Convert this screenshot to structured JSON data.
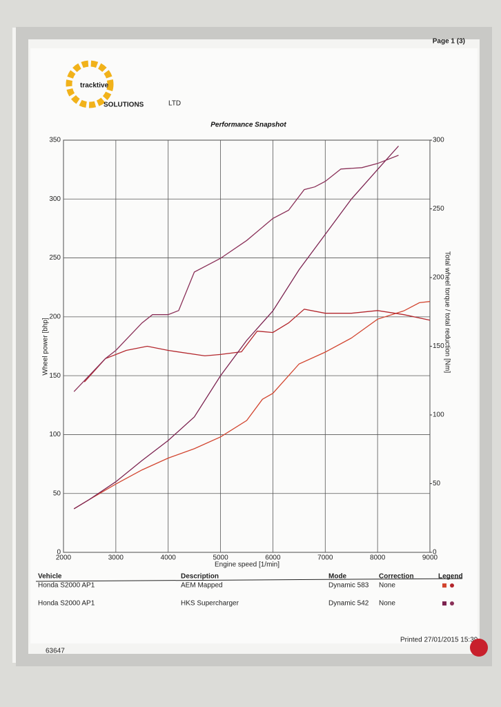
{
  "page_label": "Page 1 (3)",
  "brand": {
    "name": "tracktive",
    "sub": "SOLUTIONS",
    "suffix": "LTD"
  },
  "chart_data": {
    "type": "line",
    "title": "Performance Snapshot",
    "x_label": "Engine speed [1/min]",
    "y_label": "Wheel power [bhp]",
    "y2_label": "Total wheel torque / total reduction [Nm]",
    "xlim": [
      2000,
      9000
    ],
    "xticks": [
      2000,
      3000,
      4000,
      5000,
      6000,
      7000,
      8000,
      9000
    ],
    "ylim": [
      0,
      350
    ],
    "yticks": [
      0,
      50,
      100,
      150,
      200,
      250,
      300,
      350
    ],
    "y2lim": [
      0,
      300
    ],
    "y2ticks": [
      0,
      50,
      100,
      150,
      200,
      250,
      300
    ],
    "grid": true,
    "series": [
      {
        "color": "#d2452f",
        "axis": "y",
        "x": [
          2200,
          2500,
          3000,
          3500,
          4000,
          4500,
          5000,
          5500,
          5800,
          6000,
          6500,
          7000,
          7500,
          8000,
          8500,
          8800,
          9000
        ],
        "values": [
          37,
          45,
          58,
          70,
          80,
          88,
          98,
          112,
          130,
          135,
          160,
          170,
          182,
          198,
          205,
          212,
          213
        ]
      },
      {
        "color": "#b3262c",
        "axis": "y2",
        "x": [
          2400,
          2800,
          3200,
          3600,
          4000,
          4700,
          5000,
          5400,
          5700,
          6000,
          6300,
          6600,
          7000,
          7500,
          8000,
          8500,
          9000
        ],
        "values": [
          124,
          141,
          147,
          150,
          147,
          143,
          144,
          146,
          161,
          160,
          167,
          177,
          174,
          174,
          176,
          173,
          169
        ]
      },
      {
        "color": "#7c2350",
        "axis": "y",
        "x": [
          2200,
          2500,
          3000,
          3500,
          4000,
          4500,
          5000,
          5500,
          6000,
          6500,
          7000,
          7500,
          8000,
          8400
        ],
        "values": [
          37,
          45,
          60,
          78,
          95,
          115,
          150,
          180,
          205,
          240,
          270,
          300,
          325,
          345
        ]
      },
      {
        "color": "#8a3058",
        "axis": "y2",
        "x": [
          2200,
          2500,
          2800,
          3000,
          3500,
          3700,
          4000,
          4200,
          4500,
          4800,
          5000,
          5500,
          6000,
          6300,
          6600,
          6800,
          7000,
          7300,
          7700,
          8000,
          8400
        ],
        "values": [
          117,
          129,
          141,
          147,
          167,
          173,
          173,
          176,
          204,
          210,
          214,
          227,
          243,
          249,
          264,
          266,
          270,
          279,
          280,
          283,
          289
        ]
      }
    ]
  },
  "table": {
    "headers": [
      "Vehicle",
      "Description",
      "Mode",
      "Correction",
      "Legend"
    ],
    "rows": [
      [
        "Honda S2000 AP1",
        "AEM Mapped",
        "Dynamic 583",
        "None"
      ],
      [
        "Honda S2000 AP1",
        "HKS Supercharger",
        "Dynamic 542",
        "None"
      ]
    ]
  },
  "footer": {
    "printed": "Printed 27/01/2015 15:39",
    "code": "63647"
  }
}
